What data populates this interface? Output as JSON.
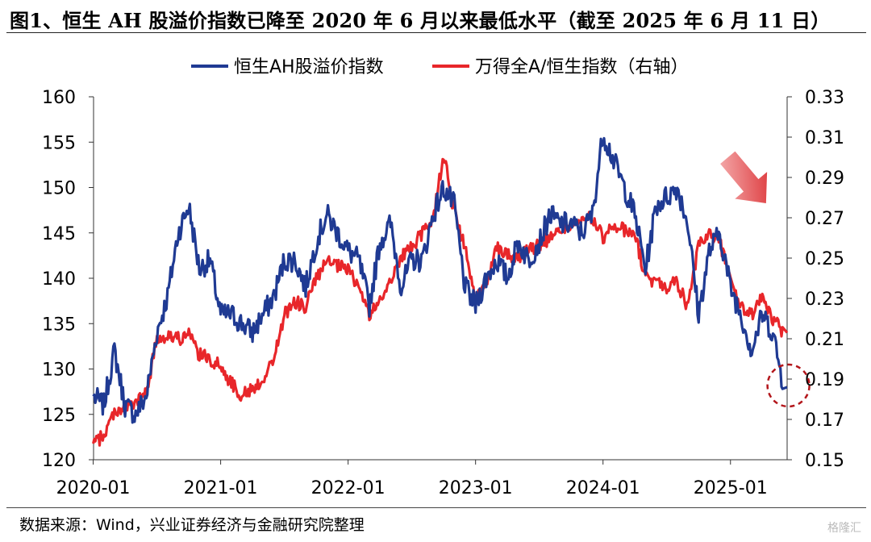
{
  "title": "图1、恒生 AH 股溢价指数已降至 2020 年 6 月以来最低水平（截至 2025 年 6 月 11 日）",
  "source": "数据来源：Wind，兴业证券经济与金融研究院整理",
  "watermark": "格隆汇",
  "colors": {
    "ah_series": "#1f3a93",
    "ratio_series": "#e8262a",
    "arrow": "#d9262a",
    "axis": "#333333"
  },
  "chart_data": {
    "type": "line",
    "title": "",
    "legend_position": "top",
    "grid": false,
    "x_ticks": [
      "2020-01",
      "2021-01",
      "2022-01",
      "2023-01",
      "2024-01",
      "2025-01"
    ],
    "x_range": [
      "2020-01-02",
      "2025-06-11"
    ],
    "y_left": {
      "label": "",
      "range": [
        120,
        160
      ],
      "ticks": [
        "160",
        "155",
        "150",
        "145",
        "140",
        "135",
        "130",
        "125",
        "120"
      ]
    },
    "y_right": {
      "label": "",
      "range": [
        0.15,
        0.33
      ],
      "ticks": [
        "0.33",
        "0.31",
        "0.29",
        "0.27",
        "0.25",
        "0.23",
        "0.21",
        "0.19",
        "0.17",
        "0.15"
      ]
    },
    "annotations": [
      {
        "kind": "arrow",
        "direction": "down-right",
        "near": "2025-03"
      },
      {
        "kind": "dashed-circle",
        "at": {
          "x": "2025-06",
          "y": 128
        }
      }
    ],
    "series": [
      {
        "name": "恒生AH股溢价指数",
        "axis": "left",
        "points": [
          [
            "2020-01",
            127
          ],
          [
            "2020-02",
            126
          ],
          [
            "2020-03",
            132
          ],
          [
            "2020-04",
            126
          ],
          [
            "2020-05",
            125
          ],
          [
            "2020-06",
            127
          ],
          [
            "2020-07",
            134
          ],
          [
            "2020-08",
            138
          ],
          [
            "2020-09",
            145
          ],
          [
            "2020-10",
            148
          ],
          [
            "2020-11",
            141
          ],
          [
            "2020-12",
            142
          ],
          [
            "2021-01",
            136
          ],
          [
            "2021-02",
            136
          ],
          [
            "2021-03",
            135
          ],
          [
            "2021-04",
            134
          ],
          [
            "2021-05",
            136
          ],
          [
            "2021-06",
            138
          ],
          [
            "2021-07",
            142
          ],
          [
            "2021-08",
            142
          ],
          [
            "2021-09",
            139
          ],
          [
            "2021-10",
            144
          ],
          [
            "2021-11",
            147
          ],
          [
            "2021-12",
            145
          ],
          [
            "2022-01",
            143
          ],
          [
            "2022-02",
            142
          ],
          [
            "2022-03",
            137
          ],
          [
            "2022-04",
            144
          ],
          [
            "2022-05",
            146
          ],
          [
            "2022-06",
            139
          ],
          [
            "2022-07",
            142
          ],
          [
            "2022-08",
            142
          ],
          [
            "2022-09",
            147
          ],
          [
            "2022-10",
            150
          ],
          [
            "2022-11",
            148
          ],
          [
            "2022-12",
            139
          ],
          [
            "2023-01",
            137
          ],
          [
            "2023-02",
            140
          ],
          [
            "2023-03",
            142
          ],
          [
            "2023-04",
            140
          ],
          [
            "2023-05",
            144
          ],
          [
            "2023-06",
            142
          ],
          [
            "2023-07",
            144
          ],
          [
            "2023-08",
            147
          ],
          [
            "2023-09",
            146
          ],
          [
            "2023-10",
            146
          ],
          [
            "2023-11",
            145
          ],
          [
            "2023-12",
            147
          ],
          [
            "2024-01",
            156
          ],
          [
            "2024-02",
            153
          ],
          [
            "2024-03",
            150
          ],
          [
            "2024-04",
            147
          ],
          [
            "2024-05",
            141
          ],
          [
            "2024-06",
            148
          ],
          [
            "2024-07",
            149
          ],
          [
            "2024-08",
            150
          ],
          [
            "2024-09",
            146
          ],
          [
            "2024-10",
            136
          ],
          [
            "2024-11",
            143
          ],
          [
            "2024-12",
            145
          ],
          [
            "2025-01",
            139
          ],
          [
            "2025-02",
            136
          ],
          [
            "2025-03",
            132
          ],
          [
            "2025-04",
            136
          ],
          [
            "2025-05",
            134
          ],
          [
            "2025-06",
            128
          ]
        ]
      },
      {
        "name": "万得全A/恒生指数（右轴）",
        "axis": "right",
        "points": [
          [
            "2020-01",
            0.158
          ],
          [
            "2020-02",
            0.162
          ],
          [
            "2020-03",
            0.174
          ],
          [
            "2020-04",
            0.176
          ],
          [
            "2020-05",
            0.178
          ],
          [
            "2020-06",
            0.183
          ],
          [
            "2020-07",
            0.21
          ],
          [
            "2020-08",
            0.212
          ],
          [
            "2020-09",
            0.21
          ],
          [
            "2020-10",
            0.212
          ],
          [
            "2020-11",
            0.202
          ],
          [
            "2020-12",
            0.2
          ],
          [
            "2021-01",
            0.196
          ],
          [
            "2021-02",
            0.188
          ],
          [
            "2021-03",
            0.182
          ],
          [
            "2021-04",
            0.185
          ],
          [
            "2021-05",
            0.19
          ],
          [
            "2021-06",
            0.2
          ],
          [
            "2021-07",
            0.222
          ],
          [
            "2021-08",
            0.228
          ],
          [
            "2021-09",
            0.226
          ],
          [
            "2021-10",
            0.24
          ],
          [
            "2021-11",
            0.248
          ],
          [
            "2021-12",
            0.246
          ],
          [
            "2022-01",
            0.244
          ],
          [
            "2022-02",
            0.236
          ],
          [
            "2022-03",
            0.222
          ],
          [
            "2022-04",
            0.228
          ],
          [
            "2022-05",
            0.24
          ],
          [
            "2022-06",
            0.25
          ],
          [
            "2022-07",
            0.256
          ],
          [
            "2022-08",
            0.262
          ],
          [
            "2022-09",
            0.27
          ],
          [
            "2022-10",
            0.302
          ],
          [
            "2022-11",
            0.272
          ],
          [
            "2022-12",
            0.255
          ],
          [
            "2023-01",
            0.228
          ],
          [
            "2023-02",
            0.238
          ],
          [
            "2023-03",
            0.256
          ],
          [
            "2023-04",
            0.252
          ],
          [
            "2023-05",
            0.25
          ],
          [
            "2023-06",
            0.255
          ],
          [
            "2023-07",
            0.256
          ],
          [
            "2023-08",
            0.26
          ],
          [
            "2023-09",
            0.264
          ],
          [
            "2023-10",
            0.266
          ],
          [
            "2023-11",
            0.268
          ],
          [
            "2023-12",
            0.27
          ],
          [
            "2024-01",
            0.26
          ],
          [
            "2024-02",
            0.266
          ],
          [
            "2024-03",
            0.264
          ],
          [
            "2024-04",
            0.262
          ],
          [
            "2024-05",
            0.24
          ],
          [
            "2024-06",
            0.238
          ],
          [
            "2024-07",
            0.236
          ],
          [
            "2024-08",
            0.238
          ],
          [
            "2024-09",
            0.225
          ],
          [
            "2024-10",
            0.256
          ],
          [
            "2024-11",
            0.262
          ],
          [
            "2024-12",
            0.258
          ],
          [
            "2025-01",
            0.24
          ],
          [
            "2025-02",
            0.225
          ],
          [
            "2025-03",
            0.222
          ],
          [
            "2025-04",
            0.23
          ],
          [
            "2025-05",
            0.22
          ],
          [
            "2025-06",
            0.213
          ]
        ]
      }
    ]
  }
}
